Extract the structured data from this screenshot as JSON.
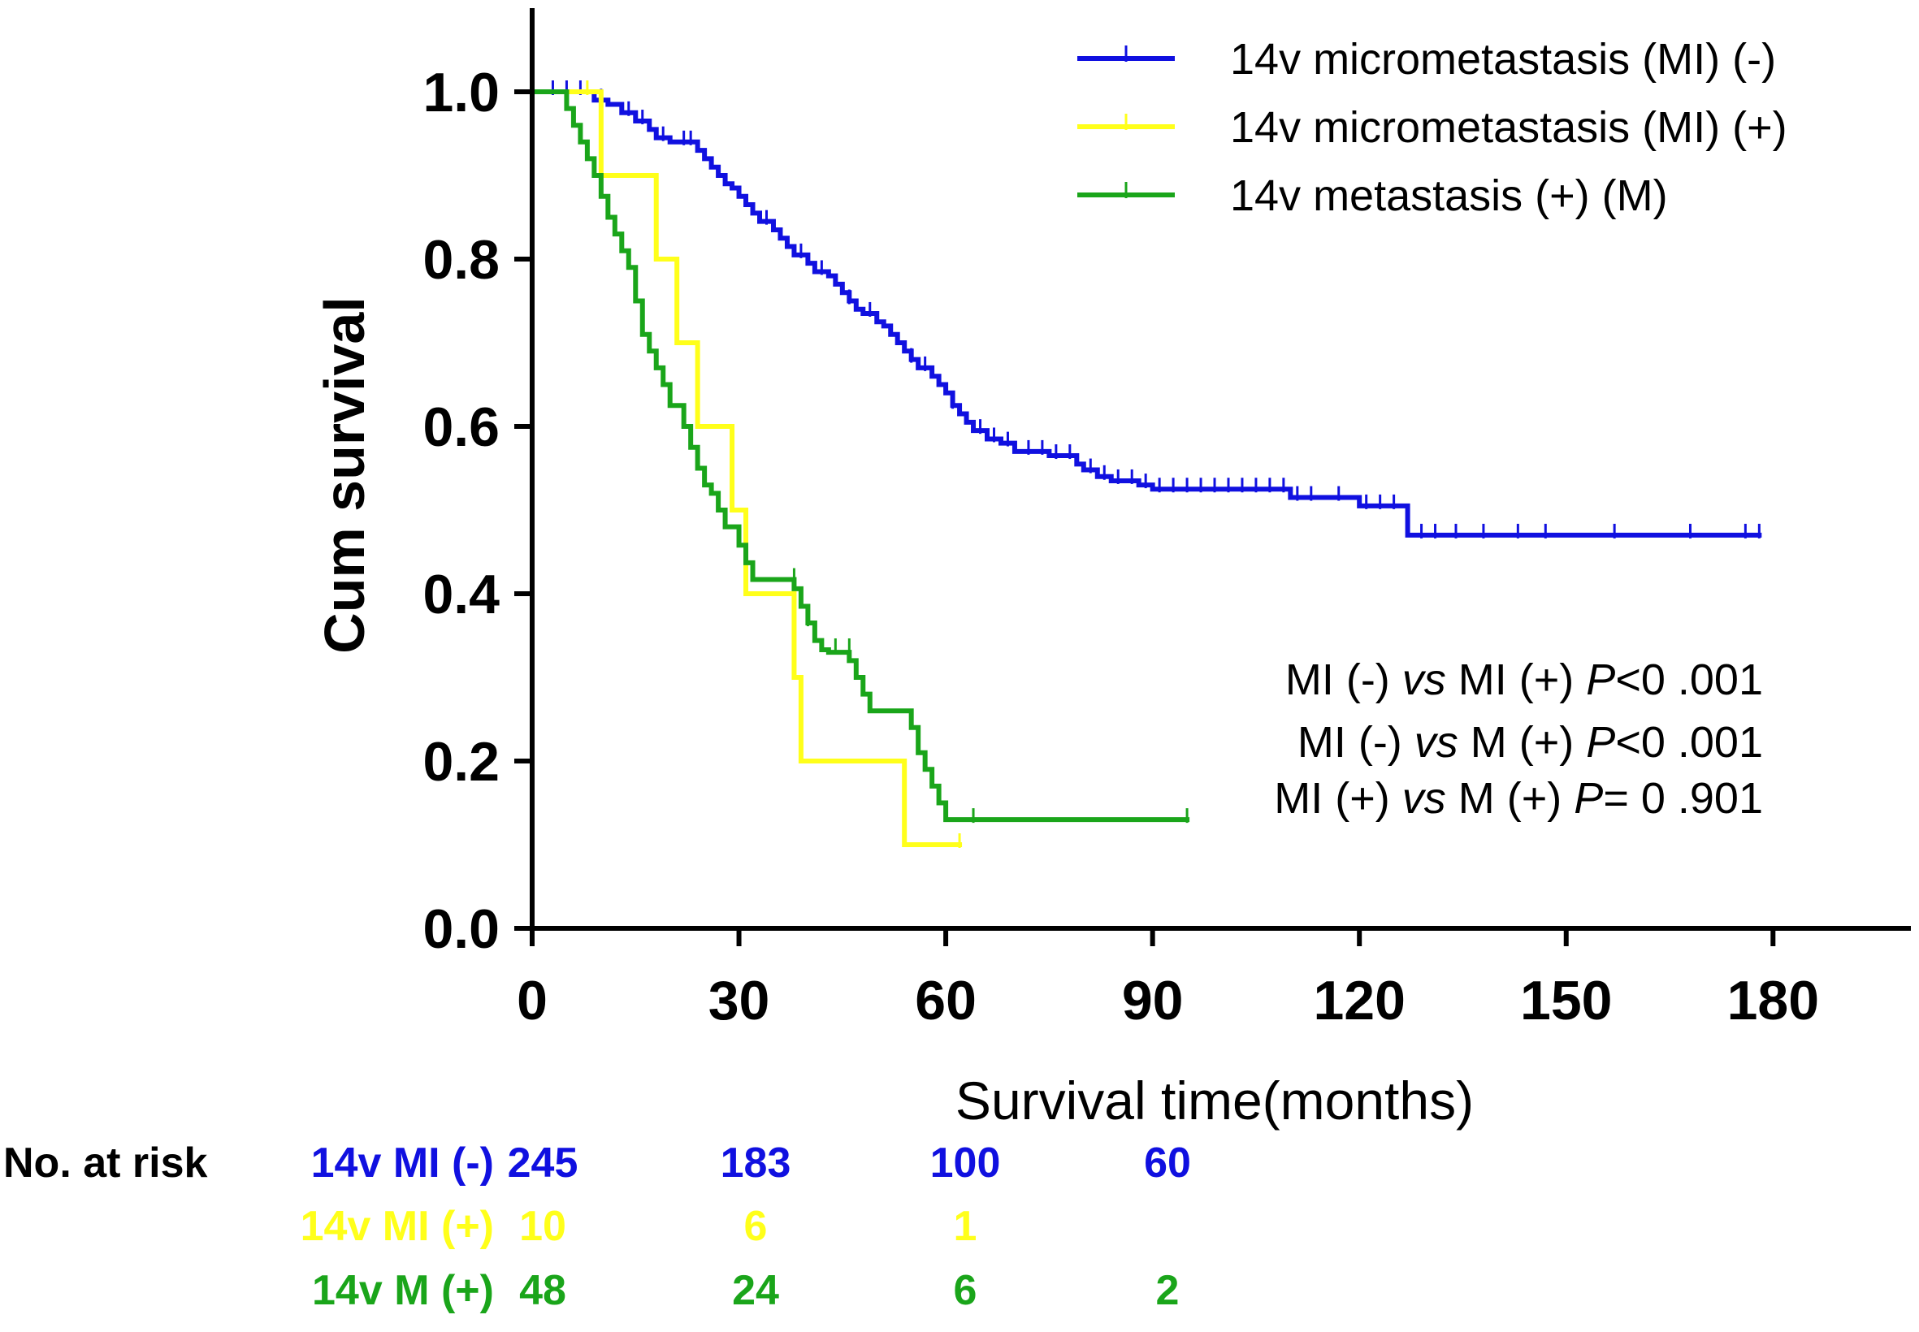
{
  "chart_data": {
    "type": "line",
    "subtype": "kaplan-meier",
    "xlabel": "Survival time(months)",
    "ylabel": "Cum survival",
    "xlim": [
      0,
      200
    ],
    "ylim": [
      0,
      1.1
    ],
    "xticks": [
      0,
      30,
      60,
      90,
      120,
      150,
      180
    ],
    "xtick_labels": [
      "0",
      "30",
      "60",
      "90",
      "120",
      "150",
      "180"
    ],
    "yticks": [
      0.0,
      0.2,
      0.4,
      0.6,
      0.8,
      1.0
    ],
    "ytick_labels": [
      "0.0",
      "0.2",
      "0.4",
      "0.6",
      "0.8",
      "1.0"
    ],
    "legend_position": "top-right",
    "series": [
      {
        "name": "14v micrometastasis (MI) (-)",
        "color": "#1010e0",
        "steps": [
          [
            0,
            1.0
          ],
          [
            9,
            0.99
          ],
          [
            11,
            0.985
          ],
          [
            13,
            0.975
          ],
          [
            15,
            0.965
          ],
          [
            17,
            0.955
          ],
          [
            18,
            0.945
          ],
          [
            20,
            0.94
          ],
          [
            24,
            0.93
          ],
          [
            25,
            0.92
          ],
          [
            26,
            0.91
          ],
          [
            27,
            0.9
          ],
          [
            28,
            0.89
          ],
          [
            29,
            0.885
          ],
          [
            30,
            0.875
          ],
          [
            31,
            0.865
          ],
          [
            32,
            0.855
          ],
          [
            33,
            0.845
          ],
          [
            35,
            0.835
          ],
          [
            36,
            0.825
          ],
          [
            37,
            0.815
          ],
          [
            38,
            0.805
          ],
          [
            40,
            0.795
          ],
          [
            41,
            0.785
          ],
          [
            43,
            0.78
          ],
          [
            44,
            0.77
          ],
          [
            45,
            0.76
          ],
          [
            46,
            0.75
          ],
          [
            47,
            0.74
          ],
          [
            48,
            0.735
          ],
          [
            50,
            0.725
          ],
          [
            51,
            0.72
          ],
          [
            52,
            0.71
          ],
          [
            53,
            0.7
          ],
          [
            54,
            0.69
          ],
          [
            55,
            0.68
          ],
          [
            56,
            0.67
          ],
          [
            58,
            0.66
          ],
          [
            59,
            0.65
          ],
          [
            60,
            0.64
          ],
          [
            61,
            0.625
          ],
          [
            62,
            0.615
          ],
          [
            63,
            0.605
          ],
          [
            64,
            0.595
          ],
          [
            66,
            0.585
          ],
          [
            68,
            0.58
          ],
          [
            70,
            0.57
          ],
          [
            75,
            0.565
          ],
          [
            79,
            0.555
          ],
          [
            80,
            0.548
          ],
          [
            82,
            0.54
          ],
          [
            84,
            0.535
          ],
          [
            88,
            0.53
          ],
          [
            90,
            0.525
          ],
          [
            110,
            0.515
          ],
          [
            120,
            0.505
          ],
          [
            127,
            0.47
          ],
          [
            178,
            0.47
          ]
        ],
        "censors": [
          [
            3,
            1.0
          ],
          [
            5,
            1.0
          ],
          [
            7,
            1.0
          ],
          [
            10,
            0.99
          ],
          [
            14,
            0.975
          ],
          [
            16,
            0.965
          ],
          [
            19,
            0.945
          ],
          [
            22,
            0.94
          ],
          [
            23,
            0.94
          ],
          [
            34,
            0.845
          ],
          [
            39,
            0.805
          ],
          [
            42,
            0.785
          ],
          [
            46,
            0.75
          ],
          [
            49,
            0.735
          ],
          [
            55,
            0.68
          ],
          [
            57,
            0.67
          ],
          [
            61,
            0.625
          ],
          [
            65,
            0.595
          ],
          [
            67,
            0.585
          ],
          [
            69,
            0.58
          ],
          [
            72,
            0.57
          ],
          [
            74,
            0.57
          ],
          [
            76,
            0.565
          ],
          [
            78,
            0.565
          ],
          [
            81,
            0.548
          ],
          [
            83,
            0.54
          ],
          [
            85,
            0.535
          ],
          [
            87,
            0.535
          ],
          [
            89,
            0.53
          ],
          [
            91,
            0.525
          ],
          [
            93,
            0.525
          ],
          [
            95,
            0.525
          ],
          [
            97,
            0.525
          ],
          [
            99,
            0.525
          ],
          [
            101,
            0.525
          ],
          [
            103,
            0.525
          ],
          [
            105,
            0.525
          ],
          [
            107,
            0.525
          ],
          [
            109,
            0.525
          ],
          [
            111,
            0.515
          ],
          [
            113,
            0.515
          ],
          [
            117,
            0.515
          ],
          [
            121,
            0.505
          ],
          [
            123,
            0.505
          ],
          [
            125,
            0.505
          ],
          [
            129,
            0.47
          ],
          [
            131,
            0.47
          ],
          [
            134,
            0.47
          ],
          [
            138,
            0.47
          ],
          [
            143,
            0.47
          ],
          [
            147,
            0.47
          ],
          [
            157,
            0.47
          ],
          [
            168,
            0.47
          ],
          [
            176,
            0.47
          ],
          [
            178,
            0.47
          ]
        ]
      },
      {
        "name": "14v micrometastasis (MI) (+)",
        "color": "#ffff1a",
        "steps": [
          [
            0,
            1.0
          ],
          [
            10,
            0.9
          ],
          [
            18,
            0.8
          ],
          [
            21,
            0.7
          ],
          [
            24,
            0.6
          ],
          [
            29,
            0.5
          ],
          [
            31,
            0.4
          ],
          [
            38,
            0.3
          ],
          [
            39,
            0.2
          ],
          [
            54,
            0.1
          ],
          [
            62,
            0.1
          ]
        ],
        "censors": [
          [
            8,
            1.0
          ],
          [
            62,
            0.1
          ]
        ]
      },
      {
        "name": "14v metastasis (+) (M)",
        "color": "#1aa51a",
        "steps": [
          [
            0,
            1.0
          ],
          [
            5,
            0.98
          ],
          [
            6,
            0.96
          ],
          [
            7,
            0.94
          ],
          [
            8,
            0.92
          ],
          [
            9,
            0.9
          ],
          [
            10,
            0.875
          ],
          [
            11,
            0.85
          ],
          [
            12,
            0.83
          ],
          [
            13,
            0.81
          ],
          [
            14,
            0.79
          ],
          [
            15,
            0.75
          ],
          [
            16,
            0.71
          ],
          [
            17,
            0.69
          ],
          [
            18,
            0.67
          ],
          [
            19,
            0.65
          ],
          [
            20,
            0.625
          ],
          [
            22,
            0.6
          ],
          [
            23,
            0.575
          ],
          [
            24,
            0.55
          ],
          [
            25,
            0.53
          ],
          [
            26,
            0.52
          ],
          [
            27,
            0.5
          ],
          [
            28,
            0.48
          ],
          [
            30,
            0.458
          ],
          [
            31,
            0.437
          ],
          [
            32,
            0.417
          ],
          [
            35,
            0.417
          ],
          [
            38,
            0.406
          ],
          [
            39,
            0.385
          ],
          [
            40,
            0.365
          ],
          [
            41,
            0.344
          ],
          [
            42,
            0.333
          ],
          [
            43,
            0.33
          ],
          [
            46,
            0.32
          ],
          [
            47,
            0.3
          ],
          [
            48,
            0.28
          ],
          [
            49,
            0.26
          ],
          [
            55,
            0.24
          ],
          [
            56,
            0.21
          ],
          [
            57,
            0.19
          ],
          [
            58,
            0.17
          ],
          [
            59,
            0.15
          ],
          [
            60,
            0.13
          ],
          [
            95,
            0.13
          ]
        ],
        "censors": [
          [
            38,
            0.417
          ],
          [
            40,
            0.365
          ],
          [
            44,
            0.333
          ],
          [
            46,
            0.333
          ],
          [
            64,
            0.13
          ],
          [
            95,
            0.13
          ]
        ]
      }
    ],
    "annotations": [
      {
        "prefix": "MI (-) ",
        "italic_vs": "vs",
        "middle": " MI (+) ",
        "italic_p": "P",
        "suffix": "<0 .001"
      },
      {
        "prefix": "MI (-) ",
        "italic_vs": "vs",
        "middle": " M (+) ",
        "italic_p": "P",
        "suffix": "<0 .001"
      },
      {
        "prefix": "MI (+) ",
        "italic_vs": "vs",
        "middle": " M (+) ",
        "italic_p": "P",
        "suffix": "= 0 .901"
      }
    ],
    "risk_table": {
      "header": "No. at risk",
      "times": [
        0,
        30,
        60,
        90
      ],
      "rows": [
        {
          "label": "14v MI (-)",
          "color": "#1010e0",
          "values": [
            "245",
            "183",
            "100",
            "60"
          ]
        },
        {
          "label": "14v MI (+)",
          "color": "#ffff1a",
          "values": [
            "10",
            "6",
            "1",
            ""
          ]
        },
        {
          "label": "14v  M (+)",
          "color": "#1aa51a",
          "values": [
            "48",
            "24",
            "6",
            "2"
          ]
        }
      ]
    }
  }
}
